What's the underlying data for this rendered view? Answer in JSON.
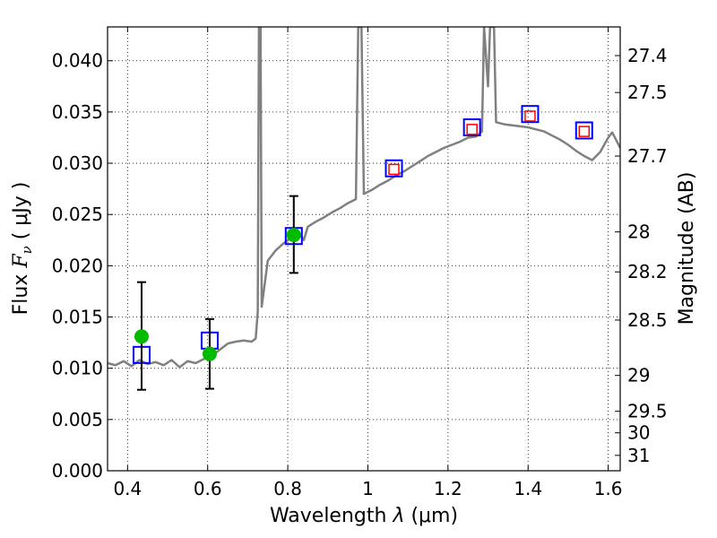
{
  "chart_data": {
    "type": "line",
    "xlabel_prefix": "Wavelength  ",
    "xlabel_symbol": "λ",
    "xlabel_suffix": " (μm)",
    "ylabel_prefix": "Flux  ",
    "ylabel_symbol": "F",
    "ylabel_subscript": "ν",
    "ylabel_suffix": "  ( μJy )",
    "y2label": "Magnitude (AB)",
    "xlim": [
      0.35,
      1.63
    ],
    "ylim": [
      0.0,
      0.0433
    ],
    "grid": true,
    "x_ticks": [
      0.4,
      0.6,
      0.8,
      1.0,
      1.2,
      1.4,
      1.6
    ],
    "x_tick_labels": [
      "0.4",
      "0.6",
      "0.8",
      "1",
      "1.2",
      "1.4",
      "1.6"
    ],
    "y_ticks": [
      0.0,
      0.005,
      0.01,
      0.015,
      0.02,
      0.025,
      0.03,
      0.035,
      0.04
    ],
    "y_tick_labels": [
      "0.000",
      "0.005",
      "0.010",
      "0.015",
      "0.020",
      "0.025",
      "0.030",
      "0.035",
      "0.040"
    ],
    "mag_ticks": [
      {
        "label": "27.4",
        "flux": 0.0405
      },
      {
        "label": "27.5",
        "flux": 0.0369
      },
      {
        "label": "27.7",
        "flux": 0.0307
      },
      {
        "label": "28",
        "flux": 0.0233
      },
      {
        "label": "28.2",
        "flux": 0.0194
      },
      {
        "label": "28.5",
        "flux": 0.0147
      },
      {
        "label": "29",
        "flux": 0.0093
      },
      {
        "label": "29.5",
        "flux": 0.0058
      },
      {
        "label": "30",
        "flux": 0.0037
      },
      {
        "label": "31",
        "flux": 0.0015
      }
    ],
    "series": [
      {
        "name": "Model SED",
        "color": "#808080",
        "points": [
          [
            0.35,
            0.0105
          ],
          [
            0.37,
            0.0103
          ],
          [
            0.39,
            0.0107
          ],
          [
            0.41,
            0.0102
          ],
          [
            0.43,
            0.0108
          ],
          [
            0.45,
            0.0104
          ],
          [
            0.47,
            0.0106
          ],
          [
            0.49,
            0.0103
          ],
          [
            0.51,
            0.0108
          ],
          [
            0.53,
            0.0101
          ],
          [
            0.55,
            0.0107
          ],
          [
            0.57,
            0.0105
          ],
          [
            0.59,
            0.0109
          ],
          [
            0.61,
            0.0112
          ],
          [
            0.63,
            0.0118
          ],
          [
            0.65,
            0.0124
          ],
          [
            0.67,
            0.0126
          ],
          [
            0.69,
            0.0127
          ],
          [
            0.71,
            0.0126
          ],
          [
            0.72,
            0.0129
          ],
          [
            0.725,
            0.0155
          ],
          [
            0.728,
            0.0433
          ],
          [
            0.732,
            0.0433
          ],
          [
            0.735,
            0.016
          ],
          [
            0.75,
            0.0205
          ],
          [
            0.77,
            0.0215
          ],
          [
            0.79,
            0.0222
          ],
          [
            0.81,
            0.0228
          ],
          [
            0.83,
            0.0231
          ],
          [
            0.84,
            0.0225
          ],
          [
            0.85,
            0.0238
          ],
          [
            0.87,
            0.0243
          ],
          [
            0.89,
            0.0247
          ],
          [
            0.91,
            0.0252
          ],
          [
            0.93,
            0.0256
          ],
          [
            0.95,
            0.0261
          ],
          [
            0.97,
            0.0265
          ],
          [
            0.976,
            0.0433
          ],
          [
            0.984,
            0.0433
          ],
          [
            0.99,
            0.027
          ],
          [
            1.01,
            0.0274
          ],
          [
            1.03,
            0.0279
          ],
          [
            1.05,
            0.0283
          ],
          [
            1.07,
            0.0288
          ],
          [
            1.09,
            0.0292
          ],
          [
            1.11,
            0.0297
          ],
          [
            1.13,
            0.0302
          ],
          [
            1.15,
            0.0307
          ],
          [
            1.17,
            0.0311
          ],
          [
            1.19,
            0.0315
          ],
          [
            1.21,
            0.0318
          ],
          [
            1.23,
            0.0321
          ],
          [
            1.25,
            0.0325
          ],
          [
            1.27,
            0.0326
          ],
          [
            1.285,
            0.0331
          ],
          [
            1.29,
            0.0433
          ],
          [
            1.3,
            0.0375
          ],
          [
            1.305,
            0.0433
          ],
          [
            1.315,
            0.0433
          ],
          [
            1.32,
            0.034
          ],
          [
            1.34,
            0.0338
          ],
          [
            1.36,
            0.0337
          ],
          [
            1.38,
            0.0336
          ],
          [
            1.4,
            0.0335
          ],
          [
            1.42,
            0.0333
          ],
          [
            1.44,
            0.0331
          ],
          [
            1.46,
            0.0327
          ],
          [
            1.48,
            0.0323
          ],
          [
            1.5,
            0.0318
          ],
          [
            1.52,
            0.0312
          ],
          [
            1.54,
            0.0307
          ],
          [
            1.56,
            0.0303
          ],
          [
            1.58,
            0.0311
          ],
          [
            1.6,
            0.0325
          ],
          [
            1.61,
            0.033
          ],
          [
            1.63,
            0.0315
          ]
        ]
      },
      {
        "name": "Model photometry (blue squares)",
        "color": "#0000ff",
        "points": [
          [
            0.435,
            0.0113
          ],
          [
            0.605,
            0.0127
          ],
          [
            0.815,
            0.0229
          ],
          [
            1.065,
            0.0295
          ],
          [
            1.26,
            0.0335
          ],
          [
            1.405,
            0.0348
          ],
          [
            1.54,
            0.0332
          ]
        ]
      },
      {
        "name": "Observed photometry (red squares)",
        "color": "#ff0000",
        "points": [
          [
            1.065,
            0.0294
          ],
          [
            1.26,
            0.0333
          ],
          [
            1.405,
            0.0346
          ],
          [
            1.54,
            0.0331
          ]
        ]
      },
      {
        "name": "Observed photometry (green circles)",
        "color": "#00bb00",
        "points": [
          [
            0.435,
            0.0131
          ],
          [
            0.605,
            0.0114
          ],
          [
            0.815,
            0.023
          ]
        ],
        "error_low": [
          0.0079,
          0.008,
          0.0193
        ],
        "error_high": [
          0.0184,
          0.0148,
          0.0268
        ]
      }
    ]
  }
}
